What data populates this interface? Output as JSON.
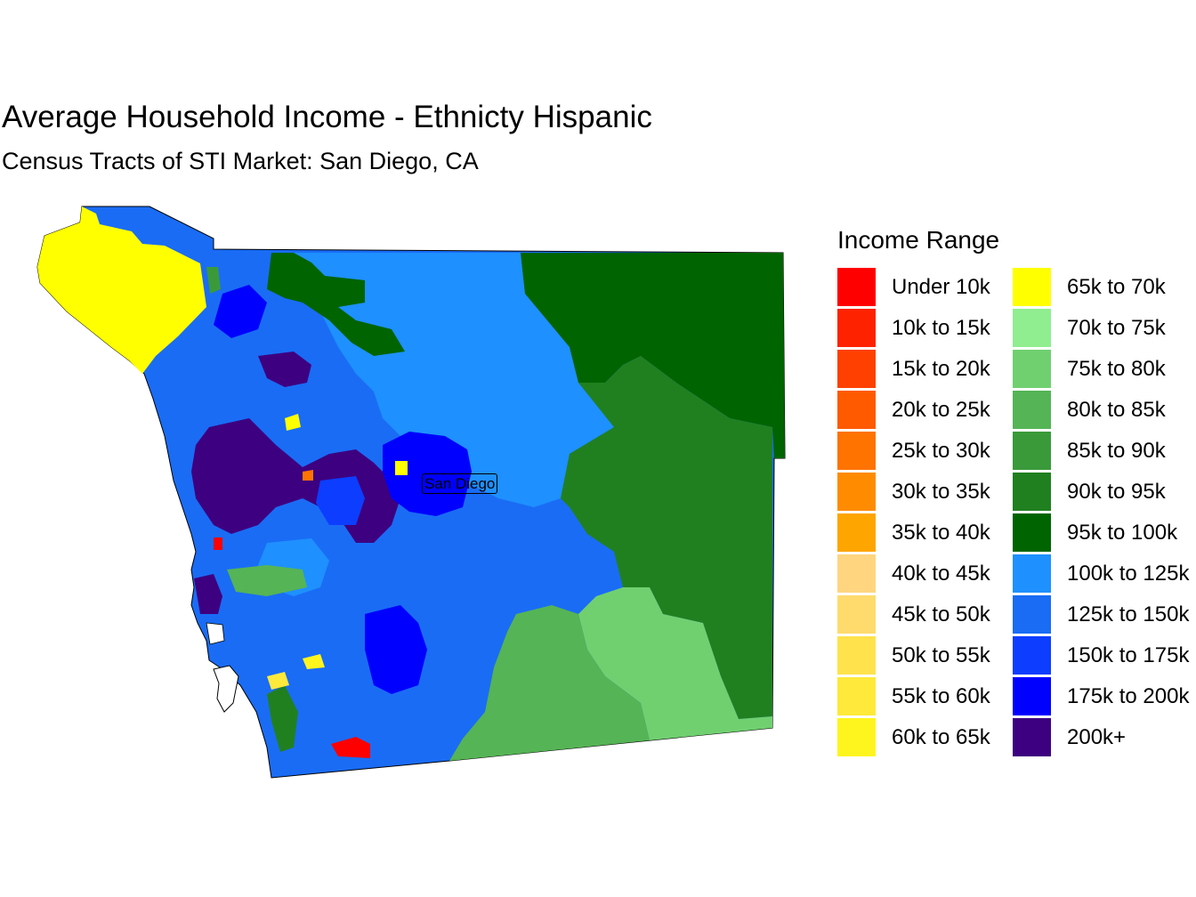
{
  "title": "Average Household Income - Ethnicty Hispanic",
  "subtitle": "Census Tracts of STI Market: San Diego, CA",
  "city_label": "San Diego",
  "legend": {
    "title": "Income Range",
    "items": [
      {
        "label": "Under 10k",
        "color": "#ff0000"
      },
      {
        "label": "10k to 15k",
        "color": "#ff2200"
      },
      {
        "label": "15k to 20k",
        "color": "#ff4000"
      },
      {
        "label": "20k to 25k",
        "color": "#ff5a00"
      },
      {
        "label": "25k to 30k",
        "color": "#ff7300"
      },
      {
        "label": "30k to 35k",
        "color": "#ff8c00"
      },
      {
        "label": "35k to 40k",
        "color": "#ffa500"
      },
      {
        "label": "40k to 45k",
        "color": "#ffd580"
      },
      {
        "label": "45k to 50k",
        "color": "#ffdb6e"
      },
      {
        "label": "50k to 55k",
        "color": "#ffe24c"
      },
      {
        "label": "55k to 60k",
        "color": "#ffe93a"
      },
      {
        "label": "60k to 65k",
        "color": "#fff51e"
      },
      {
        "label": "65k to 70k",
        "color": "#ffff00"
      },
      {
        "label": "70k to 75k",
        "color": "#90ee90"
      },
      {
        "label": "75k to 80k",
        "color": "#70d070"
      },
      {
        "label": "80k to 85k",
        "color": "#55b455"
      },
      {
        "label": "85k to 90k",
        "color": "#3a9a3a"
      },
      {
        "label": "90k to 95k",
        "color": "#208020"
      },
      {
        "label": "95k to 100k",
        "color": "#006400"
      },
      {
        "label": "100k to 125k",
        "color": "#1e90ff"
      },
      {
        "label": "125k to 150k",
        "color": "#1a6cf5"
      },
      {
        "label": "150k to 175k",
        "color": "#0d3dff"
      },
      {
        "label": "175k to 200k",
        "color": "#0000ff"
      },
      {
        "label": "200k+",
        "color": "#3d0080"
      }
    ]
  }
}
